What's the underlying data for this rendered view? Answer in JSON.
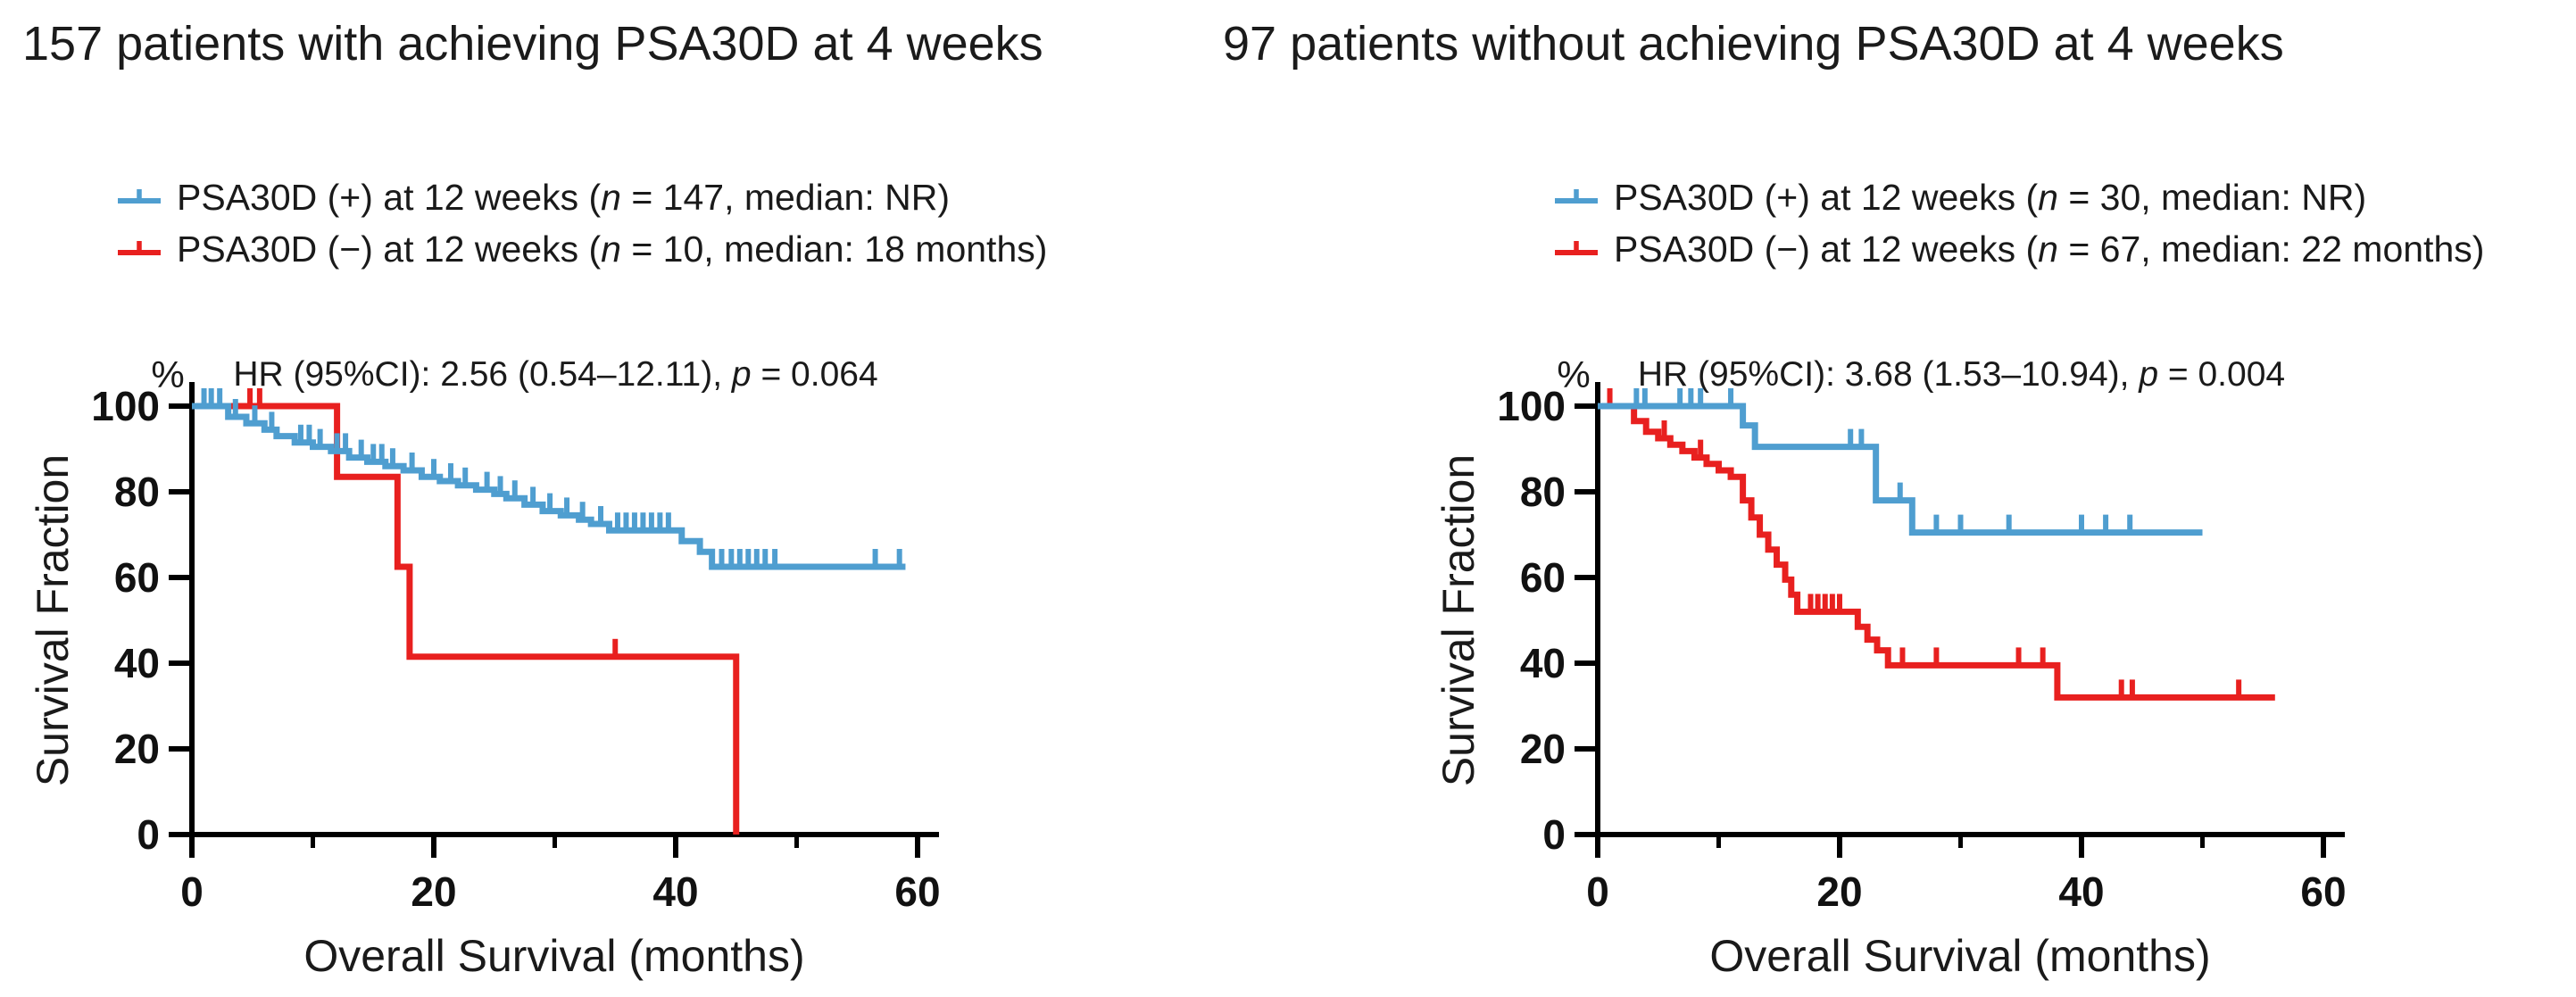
{
  "figure": {
    "background": "#ffffff",
    "text_color": "#1a1a1a",
    "axis_color": "#000000",
    "description": "Two Kaplan-Meier overall survival plots comparing PSA30D response at 12 weeks"
  },
  "chart_data": [
    {
      "type": "line",
      "subtype": "kaplan_meier_step",
      "title": "157 patients with achieving PSA30D at 4 weeks",
      "annotation": "HR (95%CI): 2.56 (0.54–12.11), p = 0.064",
      "xlabel": "Overall Survival (months)",
      "ylabel": "Survival Fraction",
      "y_unit": "%",
      "xlim": [
        0,
        60
      ],
      "ylim": [
        0,
        100
      ],
      "xticks": [
        0,
        20,
        40,
        60
      ],
      "xticks_minor": [
        10,
        30,
        50
      ],
      "yticks": [
        0,
        20,
        40,
        60,
        80,
        100
      ],
      "grid": false,
      "legend_position": "above-plot-left",
      "series": [
        {
          "name": "PSA30D (+) at 12 weeks (n = 147, median: NR)",
          "color": "#4f9ed0",
          "n": 147,
          "median": "NR",
          "start": [
            0,
            100
          ],
          "steps": [
            [
              3,
              97.5
            ],
            [
              4.5,
              96
            ],
            [
              6,
              94.5
            ],
            [
              7,
              93
            ],
            [
              8.5,
              91.5
            ],
            [
              10,
              90.5
            ],
            [
              11.5,
              89.5
            ],
            [
              13,
              88
            ],
            [
              14.5,
              87
            ],
            [
              16,
              86
            ],
            [
              17.5,
              85
            ],
            [
              19,
              83.5
            ],
            [
              20.5,
              82.5
            ],
            [
              22,
              81.5
            ],
            [
              23.5,
              80.5
            ],
            [
              25,
              79.5
            ],
            [
              26,
              78.5
            ],
            [
              27.5,
              77
            ],
            [
              29,
              75.5
            ],
            [
              30.5,
              74.5
            ],
            [
              32,
              73.5
            ],
            [
              33,
              72.5
            ],
            [
              34.5,
              71
            ],
            [
              40.5,
              68.5
            ],
            [
              42,
              66
            ],
            [
              43,
              62.5
            ]
          ],
          "end": 59,
          "censor_times": [
            1,
            1.6,
            2.3,
            3.6,
            5.2,
            6.6,
            9,
            9.7,
            10.6,
            12,
            12.7,
            14,
            15,
            15.7,
            16.6,
            18.2,
            20,
            21.4,
            22.6,
            24.4,
            25.5,
            26.7,
            28.2,
            29.6,
            31,
            32.3,
            33.8,
            35.2,
            35.9,
            36.6,
            37.3,
            38,
            38.7,
            39.4,
            43.8,
            44.6,
            45.3,
            46,
            46.7,
            47.4,
            48.2,
            56.5,
            58.5
          ]
        },
        {
          "name": "PSA30D (−) at 12 weeks (n = 10, median: 18 months)",
          "color": "#e8201f",
          "n": 10,
          "median": "18 months",
          "start": [
            0,
            100
          ],
          "steps": [
            [
              12,
              83.5
            ],
            [
              17,
              62.5
            ],
            [
              18,
              41.5
            ],
            [
              45,
              0
            ]
          ],
          "end": 45,
          "censor_times": [
            4.8,
            5.6,
            35
          ]
        }
      ]
    },
    {
      "type": "line",
      "subtype": "kaplan_meier_step",
      "title": "97 patients without achieving PSA30D at 4 weeks",
      "annotation": "HR (95%CI): 3.68 (1.53–10.94), p = 0.004",
      "xlabel": "Overall Survival (months)",
      "ylabel": "Survival Fraction",
      "y_unit": "%",
      "xlim": [
        0,
        60
      ],
      "ylim": [
        0,
        100
      ],
      "xticks": [
        0,
        20,
        40,
        60
      ],
      "xticks_minor": [
        10,
        30,
        50
      ],
      "yticks": [
        0,
        20,
        40,
        60,
        80,
        100
      ],
      "grid": false,
      "legend_position": "above-plot-left",
      "series": [
        {
          "name": "PSA30D (+) at 12 weeks (n = 30, median: NR)",
          "color": "#4f9ed0",
          "n": 30,
          "median": "NR",
          "start": [
            0,
            100
          ],
          "steps": [
            [
              12,
              95.5
            ],
            [
              13,
              90.5
            ],
            [
              23,
              78
            ],
            [
              26,
              70.5
            ]
          ],
          "end": 50,
          "censor_times": [
            3.2,
            3.9,
            6.8,
            7.7,
            8.5,
            11,
            20.9,
            21.8,
            25,
            28,
            30,
            34,
            40,
            42,
            44
          ]
        },
        {
          "name": "PSA30D (−) at 12 weeks (n = 67, median: 22 months)",
          "color": "#e8201f",
          "n": 67,
          "median": "22 months",
          "start": [
            0,
            100
          ],
          "steps": [
            [
              3,
              96.5
            ],
            [
              4,
              94
            ],
            [
              5,
              92.5
            ],
            [
              6,
              91
            ],
            [
              7,
              89.5
            ],
            [
              8,
              88
            ],
            [
              9,
              86.5
            ],
            [
              10,
              85
            ],
            [
              11,
              83.5
            ],
            [
              12,
              78
            ],
            [
              12.7,
              74
            ],
            [
              13.4,
              70
            ],
            [
              14.1,
              66.5
            ],
            [
              14.8,
              63
            ],
            [
              15.5,
              59.5
            ],
            [
              16,
              56
            ],
            [
              16.5,
              52
            ],
            [
              21.5,
              48.5
            ],
            [
              22.3,
              45.5
            ],
            [
              23.1,
              43
            ],
            [
              24,
              39.5
            ],
            [
              38,
              32
            ]
          ],
          "end": 56,
          "censor_times": [
            1,
            5.5,
            8.5,
            17.6,
            18.2,
            18.8,
            19.4,
            20,
            25.2,
            28,
            34.8,
            36.8,
            43.3,
            44.2,
            53
          ]
        }
      ]
    }
  ]
}
